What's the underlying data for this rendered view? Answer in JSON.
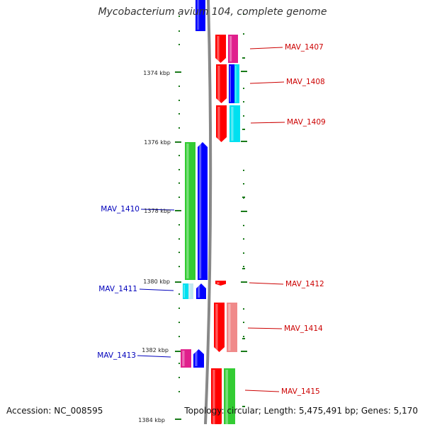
{
  "title": "Mycobacterium avium 104, complete genome",
  "accession": "Accession: NC_008595",
  "topology": "Topology: circular; Length: 5,475,491 bp; Genes: 5,170",
  "colors": {
    "backbone": "#888888",
    "tick": "#1a7a1a",
    "forward_label": "#cc0000",
    "reverse_label": "#0000bb",
    "red": "#ff0000",
    "blue": "#0000ff",
    "green": "#33cc33",
    "cyan": "#00e0f0",
    "magenta": "#e0208c",
    "pink": "#f08a8a",
    "lightblue": "#bfe8f0",
    "lavender": "#c8c8f0"
  },
  "kbp_labels": [
    "1374 kbp",
    "1376 kbp",
    "1378 kbp",
    "1380 kbp",
    "1382 kbp",
    "1384 kbp"
  ],
  "gene_labels": {
    "forward": [
      "MAV_1407",
      "MAV_1408",
      "MAV_1409",
      "MAV_1412",
      "MAV_1414",
      "MAV_1415"
    ],
    "reverse": [
      "MAV_1410",
      "MAV_1411",
      "MAV_1413"
    ]
  }
}
